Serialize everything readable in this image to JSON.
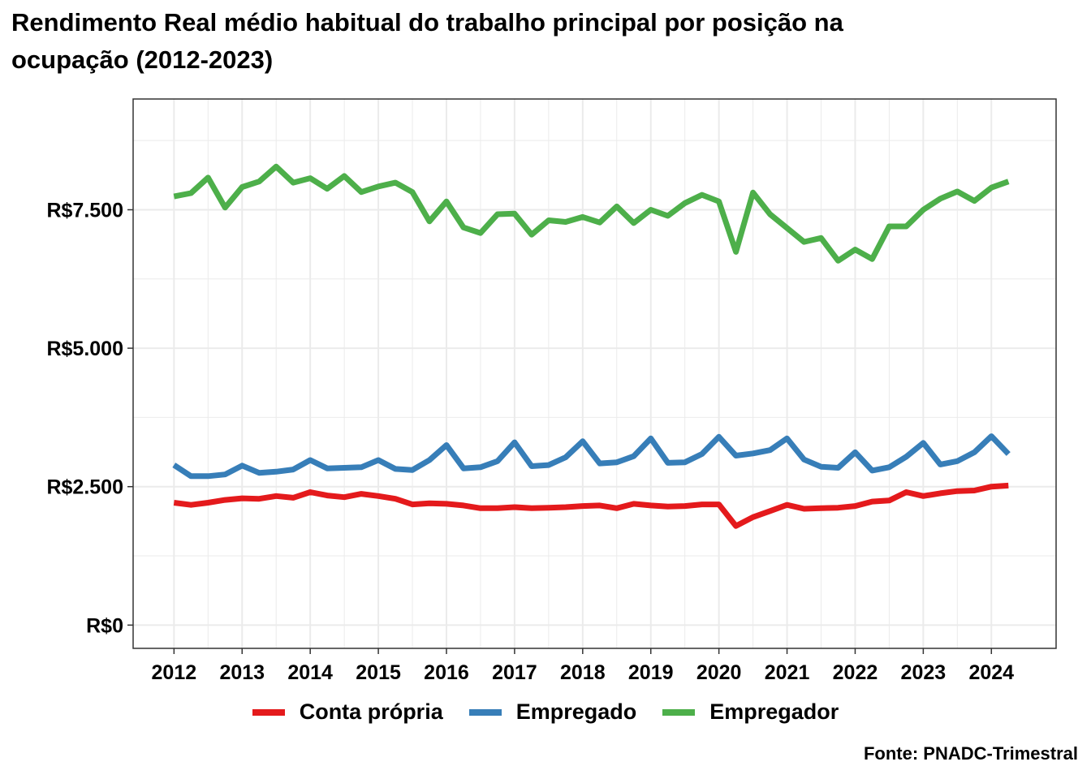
{
  "title_lines": [
    "Rendimento Real médio habitual do trabalho principal por posição na",
    "ocupação (2012-2023)"
  ],
  "source": "Fonte: PNADC-Trimestral",
  "chart_data": {
    "type": "line",
    "title": "Rendimento Real médio habitual do trabalho principal por posição na ocupação (2012-2023)",
    "xlabel": "",
    "ylabel": "",
    "x_ticks": [
      "2012",
      "2013",
      "2014",
      "2015",
      "2016",
      "2017",
      "2018",
      "2019",
      "2020",
      "2021",
      "2022",
      "2023",
      "2024"
    ],
    "y_ticks": [
      {
        "value": 0,
        "label": "R$0"
      },
      {
        "value": 2500,
        "label": "R$2.500"
      },
      {
        "value": 5000,
        "label": "R$5.000"
      },
      {
        "value": 7500,
        "label": "R$7.500"
      }
    ],
    "xlim": [
      2011.4,
      2024.95
    ],
    "ylim": [
      -420,
      9500
    ],
    "grid": true,
    "legend_position": "bottom",
    "x": [
      2012.0,
      2012.25,
      2012.5,
      2012.75,
      2013.0,
      2013.25,
      2013.5,
      2013.75,
      2014.0,
      2014.25,
      2014.5,
      2014.75,
      2015.0,
      2015.25,
      2015.5,
      2015.75,
      2016.0,
      2016.25,
      2016.5,
      2016.75,
      2017.0,
      2017.25,
      2017.5,
      2017.75,
      2018.0,
      2018.25,
      2018.5,
      2018.75,
      2019.0,
      2019.25,
      2019.5,
      2019.75,
      2020.0,
      2020.25,
      2020.5,
      2020.75,
      2021.0,
      2021.25,
      2021.5,
      2021.75,
      2022.0,
      2022.25,
      2022.5,
      2022.75,
      2023.0,
      2023.25,
      2023.5,
      2023.75,
      2024.0,
      2024.25
    ],
    "series": [
      {
        "name": "Conta própria",
        "color": "#e41a1c",
        "values": [
          2210,
          2170,
          2210,
          2260,
          2290,
          2280,
          2330,
          2300,
          2400,
          2340,
          2310,
          2370,
          2330,
          2280,
          2180,
          2200,
          2190,
          2160,
          2110,
          2110,
          2130,
          2110,
          2120,
          2130,
          2150,
          2160,
          2110,
          2190,
          2160,
          2140,
          2150,
          2180,
          2180,
          1790,
          1950,
          2060,
          2170,
          2100,
          2110,
          2120,
          2150,
          2230,
          2250,
          2400,
          2330,
          2380,
          2420,
          2430,
          2500,
          2520
        ]
      },
      {
        "name": "Empregado",
        "color": "#377eb8",
        "values": [
          2890,
          2690,
          2690,
          2720,
          2880,
          2750,
          2770,
          2810,
          2980,
          2830,
          2840,
          2850,
          2980,
          2820,
          2800,
          2980,
          3250,
          2830,
          2850,
          2960,
          3300,
          2870,
          2890,
          3030,
          3320,
          2920,
          2940,
          3050,
          3370,
          2930,
          2940,
          3090,
          3400,
          3060,
          3100,
          3160,
          3370,
          2990,
          2860,
          2840,
          3120,
          2790,
          2850,
          3040,
          3290,
          2900,
          2960,
          3120,
          3410,
          3090
        ]
      },
      {
        "name": "Empregador",
        "color": "#4daf4a",
        "values": [
          7740,
          7800,
          8080,
          7540,
          7910,
          8010,
          8280,
          7990,
          8070,
          7880,
          8110,
          7820,
          7920,
          7990,
          7820,
          7290,
          7650,
          7180,
          7080,
          7420,
          7430,
          7050,
          7310,
          7280,
          7370,
          7270,
          7560,
          7260,
          7500,
          7390,
          7620,
          7770,
          7650,
          6740,
          7810,
          7420,
          7170,
          6920,
          6990,
          6580,
          6780,
          6610,
          7200,
          7200,
          7500,
          7700,
          7830,
          7660,
          7900,
          8010
        ]
      }
    ]
  }
}
